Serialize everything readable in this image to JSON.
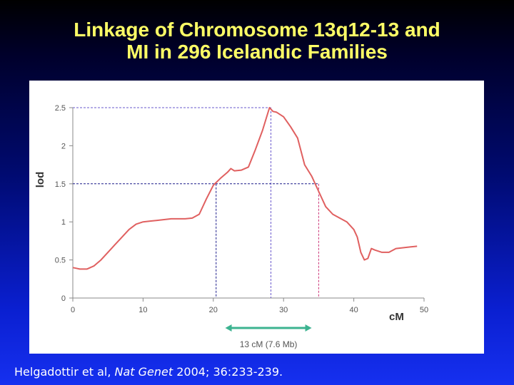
{
  "slide": {
    "title_line1": "Linkage of Chromosome 13q12-13 and",
    "title_line2": "MI in 296 Icelandic Families"
  },
  "citation": {
    "authors": "Helgadottir et al, ",
    "journal": "Nat Genet",
    "details": " 2004; 36:233-239."
  },
  "chart_data": {
    "type": "line",
    "title": "",
    "xlabel": "cM",
    "ylabel": "lod",
    "xlim": [
      0,
      50
    ],
    "ylim": [
      0,
      2.5
    ],
    "x_ticks": [
      "0",
      "10",
      "20",
      "30",
      "40",
      "50"
    ],
    "y_ticks": [
      "0",
      "0.5",
      "1",
      "1.5",
      "2",
      "2.5"
    ],
    "grid": false,
    "line_color": "#e06060",
    "series": [
      {
        "name": "",
        "x": [
          0,
          0.5,
          1,
          2,
          3,
          4,
          5,
          6,
          7,
          8,
          9,
          10,
          11,
          12,
          13,
          14,
          15,
          16,
          17,
          18,
          19,
          20,
          21,
          22,
          22.5,
          23,
          24,
          25,
          26,
          27,
          27.5,
          28,
          28.5,
          29,
          30,
          31,
          32,
          33,
          34,
          35,
          36,
          37,
          38,
          39,
          40,
          40.5,
          41,
          41.5,
          42,
          42.5,
          43,
          44,
          45,
          46,
          47,
          48,
          49
        ],
        "y": [
          0.4,
          0.39,
          0.38,
          0.38,
          0.42,
          0.5,
          0.6,
          0.7,
          0.8,
          0.9,
          0.97,
          1.0,
          1.01,
          1.02,
          1.03,
          1.04,
          1.04,
          1.04,
          1.05,
          1.1,
          1.3,
          1.48,
          1.57,
          1.65,
          1.7,
          1.67,
          1.68,
          1.72,
          1.95,
          2.2,
          2.35,
          2.5,
          2.45,
          2.44,
          2.38,
          2.25,
          2.1,
          1.75,
          1.6,
          1.4,
          1.2,
          1.1,
          1.05,
          1.0,
          0.9,
          0.8,
          0.6,
          0.5,
          0.52,
          0.65,
          0.63,
          0.6,
          0.6,
          0.65,
          0.66,
          0.67,
          0.68
        ]
      }
    ],
    "reference_lines": {
      "peak": {
        "x": 28.2,
        "y": 2.5,
        "color": "#6a5acd"
      },
      "lod_1_5": {
        "y": 1.5,
        "x_left": 20.4,
        "x_right": 35,
        "color_left": "#1a1a8a",
        "color_right": "#cc3377"
      }
    },
    "interval": {
      "x_start": 21.7,
      "x_end": 34,
      "label": "13 cM (7.6 Mb)",
      "color": "#3cb390"
    }
  }
}
